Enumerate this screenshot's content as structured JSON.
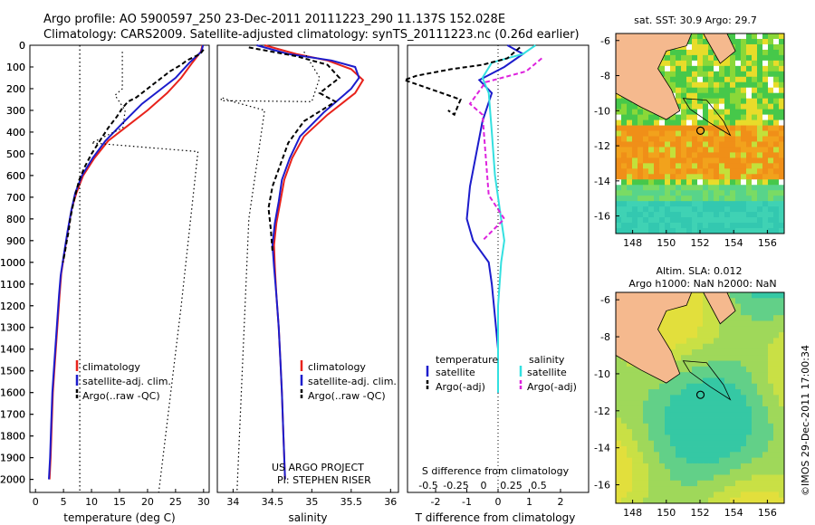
{
  "header": {
    "line1": "Argo profile: AO 5900597_250 23-Dec-2011 20111223_290 11.137S 152.028E",
    "line2": "Climatology: CARS2009. Satellite-adjusted climatology: synTS_20111223.nc (0.26d earlier)"
  },
  "colors": {
    "climatology": "#e8221b",
    "satellite": "#1c1ccc",
    "argo": "#000000",
    "salinity_satellite": "#33e0e0",
    "salinity_argo": "#dd22dd",
    "land": "#f5b98e"
  },
  "chart_data": [
    {
      "id": "temperature",
      "type": "line",
      "xlabel": "temperature (deg C)",
      "ylabel": "",
      "xlim": [
        -1,
        31
      ],
      "ylim": [
        2060,
        0
      ],
      "xticks": [
        0,
        5,
        10,
        15,
        20,
        25,
        30
      ],
      "yticks": [
        0,
        100,
        200,
        300,
        400,
        500,
        600,
        700,
        800,
        900,
        1000,
        1100,
        1200,
        1300,
        1400,
        1500,
        1600,
        1700,
        1800,
        1900,
        2000
      ],
      "legend": [
        "climatology",
        "satellite-adj. clim.",
        "Argo(..raw -QC)"
      ],
      "series": [
        {
          "name": "climatology",
          "points": [
            [
              29.8,
              0
            ],
            [
              29.5,
              30
            ],
            [
              28,
              80
            ],
            [
              26,
              150
            ],
            [
              23.5,
              220
            ],
            [
              20,
              300
            ],
            [
              16.5,
              370
            ],
            [
              13,
              440
            ],
            [
              10.5,
              520
            ],
            [
              8.5,
              600
            ],
            [
              7.3,
              680
            ],
            [
              6.5,
              750
            ],
            [
              5.8,
              850
            ],
            [
              5.2,
              950
            ],
            [
              4.6,
              1050
            ],
            [
              4.3,
              1150
            ],
            [
              3.9,
              1300
            ],
            [
              3.5,
              1450
            ],
            [
              3.1,
              1600
            ],
            [
              2.9,
              1750
            ],
            [
              2.7,
              1900
            ],
            [
              2.5,
              2000
            ]
          ]
        },
        {
          "name": "satellite",
          "points": [
            [
              29.9,
              0
            ],
            [
              29.6,
              30
            ],
            [
              27.5,
              80
            ],
            [
              25,
              150
            ],
            [
              22.5,
              200
            ],
            [
              19,
              270
            ],
            [
              15.5,
              360
            ],
            [
              12.5,
              440
            ],
            [
              10.2,
              520
            ],
            [
              8.3,
              600
            ],
            [
              7.1,
              680
            ],
            [
              6.4,
              760
            ],
            [
              5.7,
              860
            ],
            [
              5.1,
              960
            ],
            [
              4.5,
              1060
            ],
            [
              4.2,
              1150
            ],
            [
              3.8,
              1300
            ],
            [
              3.4,
              1450
            ],
            [
              3.0,
              1600
            ],
            [
              2.8,
              1750
            ],
            [
              2.6,
              1900
            ],
            [
              2.4,
              2000
            ]
          ]
        },
        {
          "name": "argo",
          "points": [
            [
              30.0,
              20
            ],
            [
              29.4,
              40
            ],
            [
              27,
              70
            ],
            [
              26,
              90
            ],
            [
              24,
              120
            ],
            [
              22.5,
              150
            ],
            [
              21,
              180
            ],
            [
              19.5,
              210
            ],
            [
              18,
              240
            ],
            [
              16.5,
              260
            ],
            [
              15.5,
              290
            ],
            [
              14.5,
              330
            ],
            [
              13,
              380
            ],
            [
              11.5,
              440
            ],
            [
              10,
              500
            ],
            [
              8.8,
              560
            ],
            [
              7.8,
              620
            ],
            [
              7.0,
              700
            ],
            [
              6.5,
              760
            ],
            [
              6.2,
              800
            ],
            [
              5.9,
              860
            ],
            [
              5.6,
              900
            ],
            [
              5.2,
              960
            ],
            [
              4.9,
              1000
            ]
          ]
        },
        {
          "name": "argo_flagged",
          "points": [
            [
              15.5,
              30
            ],
            [
              15.5,
              200
            ],
            [
              14.2,
              230
            ],
            [
              16,
              300
            ],
            [
              15.6,
              380
            ],
            [
              10,
              450
            ],
            [
              29,
              490
            ],
            [
              26,
              1200
            ],
            [
              22,
              2060
            ]
          ]
        },
        {
          "name": "argo_flagged_2",
          "points": [
            [
              7.9,
              0
            ],
            [
              7.9,
              2060
            ]
          ]
        }
      ]
    },
    {
      "id": "salinity",
      "type": "line",
      "xlabel": "salinity",
      "xlim": [
        33.8,
        36.1
      ],
      "ylim": [
        2060,
        0
      ],
      "xticks": [
        34,
        34.5,
        35,
        35.5,
        36
      ],
      "legend": [
        "climatology",
        "satellite-adj. clim.",
        "Argo(..raw -QC)"
      ],
      "annotation": [
        "US ARGO PROJECT",
        "PI: STEPHEN RISER"
      ],
      "series": [
        {
          "name": "climatology",
          "points": [
            [
              34.4,
              0
            ],
            [
              34.8,
              40
            ],
            [
              35.2,
              70
            ],
            [
              35.5,
              110
            ],
            [
              35.65,
              160
            ],
            [
              35.55,
              220
            ],
            [
              35.2,
              320
            ],
            [
              34.9,
              420
            ],
            [
              34.75,
              520
            ],
            [
              34.65,
              620
            ],
            [
              34.6,
              720
            ],
            [
              34.55,
              820
            ],
            [
              34.52,
              920
            ],
            [
              34.53,
              1020
            ],
            [
              34.55,
              1150
            ],
            [
              34.58,
              1300
            ],
            [
              34.6,
              1450
            ],
            [
              34.62,
              1600
            ],
            [
              34.64,
              1800
            ],
            [
              34.66,
              2000
            ]
          ]
        },
        {
          "name": "satellite",
          "points": [
            [
              34.3,
              0
            ],
            [
              34.7,
              40
            ],
            [
              35.25,
              70
            ],
            [
              35.55,
              100
            ],
            [
              35.6,
              150
            ],
            [
              35.5,
              200
            ],
            [
              35.15,
              310
            ],
            [
              34.85,
              420
            ],
            [
              34.72,
              520
            ],
            [
              34.62,
              620
            ],
            [
              34.58,
              720
            ],
            [
              34.53,
              820
            ],
            [
              34.5,
              920
            ],
            [
              34.52,
              1020
            ],
            [
              34.55,
              1150
            ],
            [
              34.58,
              1300
            ],
            [
              34.6,
              1450
            ],
            [
              34.62,
              1600
            ],
            [
              34.64,
              1800
            ],
            [
              34.66,
              2000
            ]
          ]
        },
        {
          "name": "argo",
          "points": [
            [
              34.2,
              10
            ],
            [
              34.8,
              50
            ],
            [
              35.2,
              90
            ],
            [
              35.35,
              150
            ],
            [
              35.1,
              220
            ],
            [
              35.3,
              260
            ],
            [
              34.9,
              350
            ],
            [
              34.7,
              450
            ],
            [
              34.6,
              550
            ],
            [
              34.5,
              650
            ],
            [
              34.45,
              750
            ],
            [
              34.48,
              850
            ],
            [
              34.5,
              950
            ]
          ]
        },
        {
          "name": "argo_flagged",
          "points": [
            [
              34.9,
              30
            ],
            [
              35.1,
              150
            ],
            [
              35.0,
              260
            ],
            [
              33.85,
              255
            ],
            [
              33.85,
              240
            ],
            [
              34.0,
              260
            ],
            [
              34.4,
              300
            ],
            [
              34.2,
              800
            ],
            [
              34.05,
              2060
            ]
          ]
        }
      ]
    },
    {
      "id": "difference",
      "type": "line",
      "xlabel": "T difference from climatology",
      "xlabel_top": "S difference from climatology",
      "xlim": [
        -2.9,
        2.9
      ],
      "ylim": [
        2060,
        0
      ],
      "xticks": [
        -2,
        -1,
        0,
        1,
        2
      ],
      "xticks_top": [
        "-0.5",
        "-0.25",
        "0",
        "0.25",
        "0.5"
      ],
      "legend": {
        "temperature": "temperature",
        "salinity": "salinity",
        "t_satellite": "satellite",
        "t_argo": "Argo(-adj)",
        "s_satellite": "satellite",
        "s_argo": "Argo(-adj)"
      },
      "series": [
        {
          "name": "t_satellite",
          "points": [
            [
              0.3,
              0
            ],
            [
              0.8,
              40
            ],
            [
              0.2,
              100
            ],
            [
              -0.6,
              160
            ],
            [
              -0.2,
              220
            ],
            [
              -0.5,
              350
            ],
            [
              -0.7,
              500
            ],
            [
              -0.9,
              650
            ],
            [
              -1.0,
              800
            ],
            [
              -0.8,
              900
            ],
            [
              -0.3,
              1000
            ],
            [
              -0.2,
              1100
            ],
            [
              -0.1,
              1250
            ],
            [
              0,
              1400
            ],
            [
              0,
              1600
            ]
          ]
        },
        {
          "name": "s_satellite",
          "points": [
            [
              1.2,
              0
            ],
            [
              0.8,
              40
            ],
            [
              -0.2,
              80
            ],
            [
              -0.5,
              150
            ],
            [
              -0.3,
              220
            ],
            [
              -0.2,
              400
            ],
            [
              -0.1,
              600
            ],
            [
              0.1,
              800
            ],
            [
              0.2,
              900
            ],
            [
              0.1,
              1000
            ],
            [
              0,
              1200
            ],
            [
              0,
              1600
            ]
          ]
        },
        {
          "name": "t_argo",
          "points": [
            [
              0.7,
              10
            ],
            [
              0.3,
              60
            ],
            [
              -0.5,
              90
            ],
            [
              -1.5,
              110
            ],
            [
              -2.6,
              140
            ],
            [
              -3.0,
              160
            ],
            [
              -1.2,
              250
            ],
            [
              -1.4,
              320
            ],
            [
              -1.6,
              300
            ]
          ]
        },
        {
          "name": "s_argo",
          "points": [
            [
              1.4,
              60
            ],
            [
              0.9,
              120
            ],
            [
              -0.4,
              170
            ],
            [
              -0.9,
              270
            ],
            [
              -0.5,
              320
            ],
            [
              -0.3,
              690
            ],
            [
              0.2,
              800
            ],
            [
              -0.5,
              900
            ]
          ]
        }
      ]
    },
    {
      "id": "sst_map",
      "type": "heatmap",
      "title": "sat. SST: 30.9 Argo: 29.7",
      "xlim": [
        147,
        157
      ],
      "ylim": [
        -17,
        -5.6
      ],
      "xticks": [
        148,
        150,
        152,
        154,
        156
      ],
      "yticks": [
        -6,
        -8,
        -10,
        -12,
        -14,
        -16
      ],
      "argo_position": [
        152.028,
        -11.137
      ]
    },
    {
      "id": "sla_map",
      "type": "heatmap",
      "title_line1": "Altim. SLA: 0.012",
      "title_line2": "Argo h1000: NaN h2000: NaN",
      "xlim": [
        147,
        157
      ],
      "ylim": [
        -17,
        -5.6
      ],
      "xticks": [
        148,
        150,
        152,
        154,
        156
      ],
      "yticks": [
        -6,
        -8,
        -10,
        -12,
        -14,
        -16
      ],
      "argo_position": [
        152.028,
        -11.137
      ]
    }
  ],
  "credit": "©IMOS 29-Dec-2011 17:00:34"
}
